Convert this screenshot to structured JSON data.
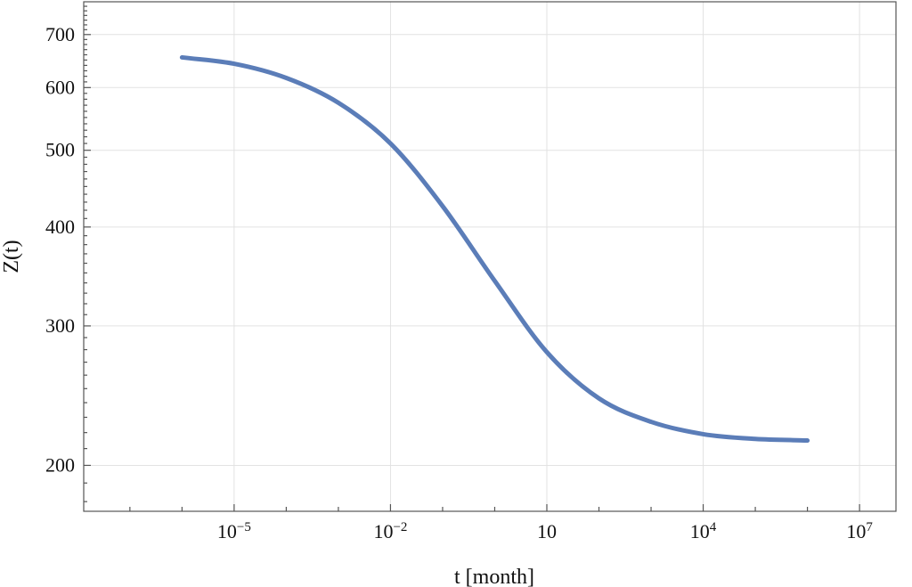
{
  "chart_data": {
    "type": "line",
    "title": "",
    "xlabel": "t [month]",
    "ylabel": "Z(t)",
    "xscale": "log",
    "yscale": "log",
    "xlim": [
      1.3e-08,
      50000000.0
    ],
    "ylim": [
      175,
      770
    ],
    "grid": true,
    "line_color": "#5b7db8",
    "x_ticks": [
      {
        "value": 1e-05,
        "base": "10",
        "exp": "−5"
      },
      {
        "value": 0.01,
        "base": "10",
        "exp": "−2"
      },
      {
        "value": 10,
        "base": "10",
        "exp": ""
      },
      {
        "value": 10000.0,
        "base": "10",
        "exp": "4"
      },
      {
        "value": 10000000.0,
        "base": "10",
        "exp": "7"
      }
    ],
    "y_ticks": [
      {
        "value": 200,
        "label": "200"
      },
      {
        "value": 300,
        "label": "300"
      },
      {
        "value": 400,
        "label": "400"
      },
      {
        "value": 500,
        "label": "500"
      },
      {
        "value": 600,
        "label": "600"
      },
      {
        "value": 700,
        "label": "700"
      }
    ],
    "series": [
      {
        "x": [
          1e-06,
          1e-05,
          0.0001,
          0.001,
          0.01,
          0.1,
          1,
          10,
          100,
          1000,
          10000.0,
          100000.0,
          1000000.0
        ],
        "y": [
          655,
          643,
          617,
          574,
          510,
          425,
          342,
          278,
          243,
          227,
          219,
          216,
          215
        ]
      }
    ]
  }
}
